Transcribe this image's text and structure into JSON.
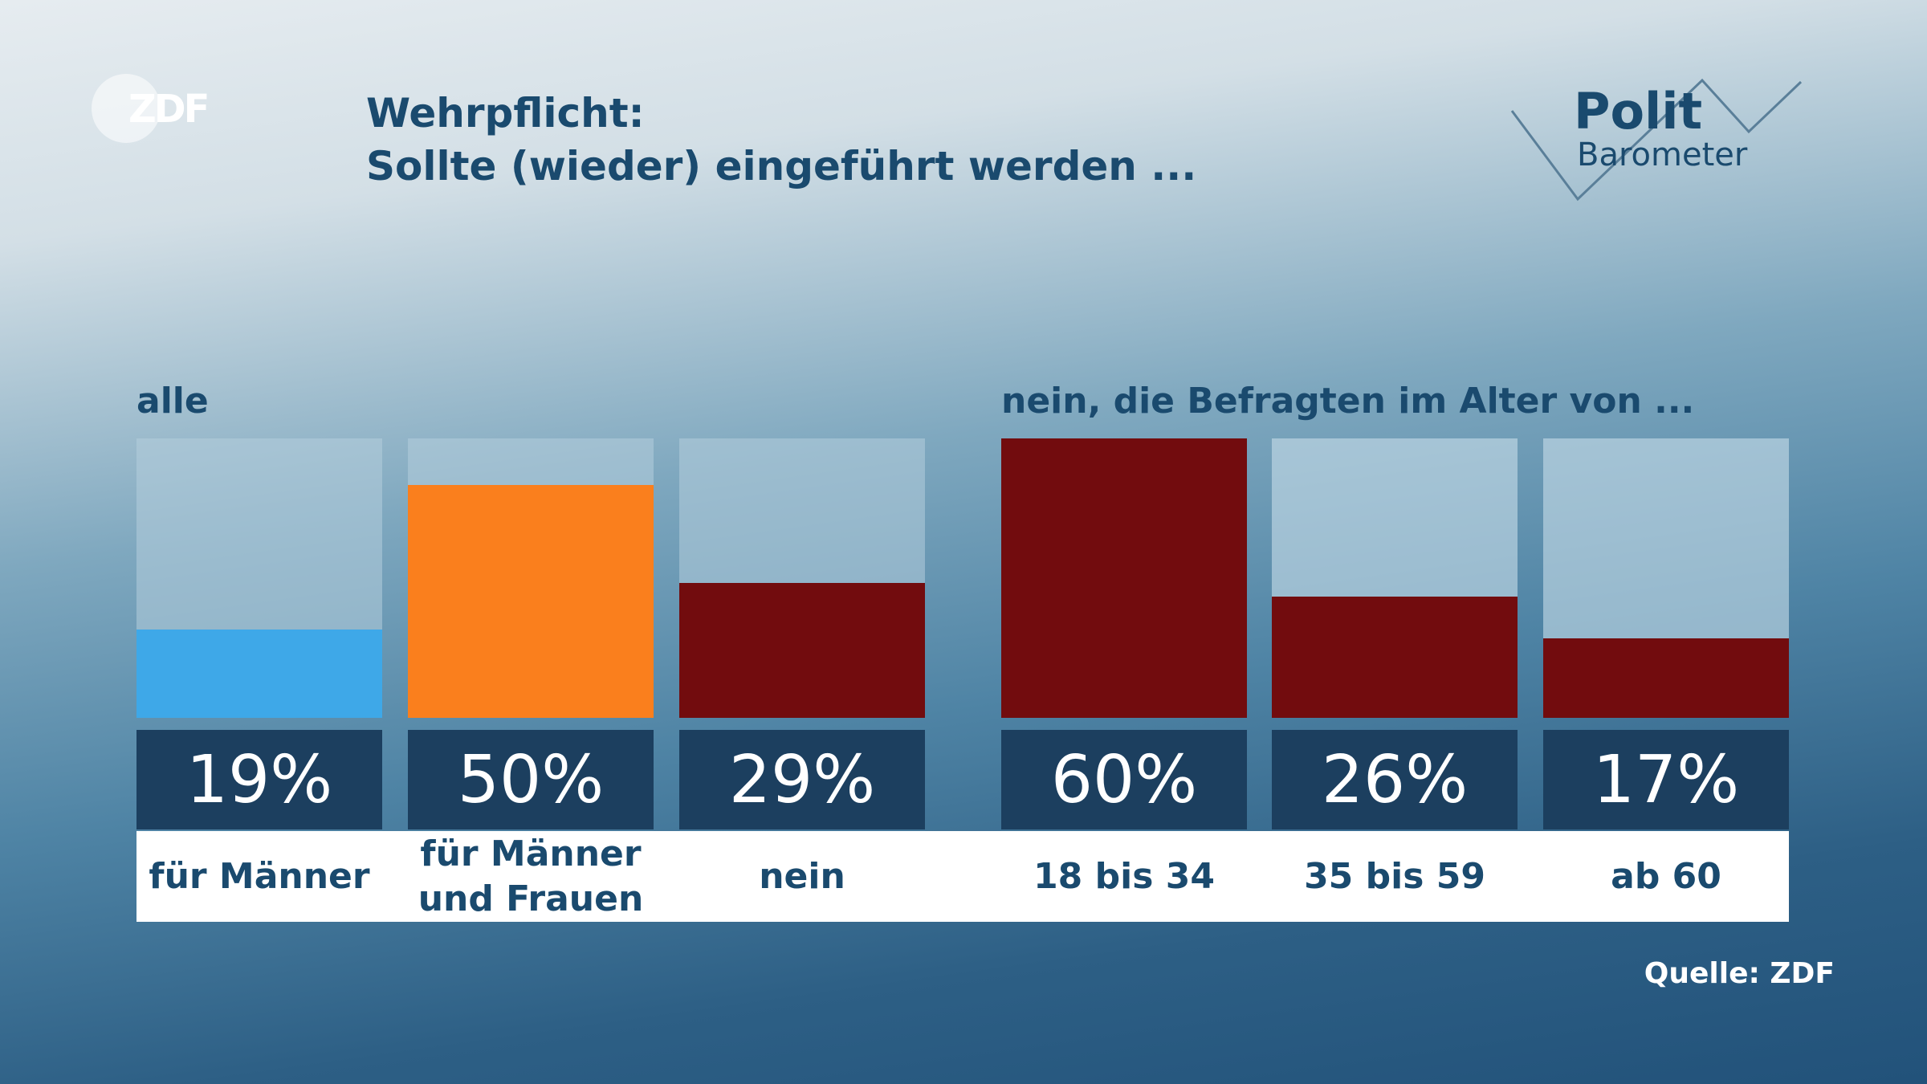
{
  "logo": {
    "zdf": "ZDF",
    "polit": "Polit",
    "barometer": "Barometer"
  },
  "title": {
    "line1": "Wehrpflicht:",
    "line2": "Sollte (wieder) eingeführt werden ..."
  },
  "source": "Quelle: ZDF",
  "chart_data": [
    {
      "type": "bar",
      "title": "alle",
      "categories": [
        "für Männer",
        "für Männer und Frauen",
        "nein"
      ],
      "values": [
        19,
        50,
        29
      ],
      "value_labels": [
        "19%",
        "50%",
        "29%"
      ],
      "colors": [
        "#3ea8e8",
        "#fa7f1d",
        "#720c0e"
      ],
      "ylim": [
        0,
        60
      ]
    },
    {
      "type": "bar",
      "title": "nein, die Befragten im Alter von ...",
      "categories": [
        "18 bis 34",
        "35 bis 59",
        "ab 60"
      ],
      "values": [
        60,
        26,
        17
      ],
      "value_labels": [
        "60%",
        "26%",
        "17%"
      ],
      "colors": [
        "#720c0e",
        "#720c0e",
        "#720c0e"
      ],
      "ylim": [
        0,
        60
      ]
    }
  ]
}
